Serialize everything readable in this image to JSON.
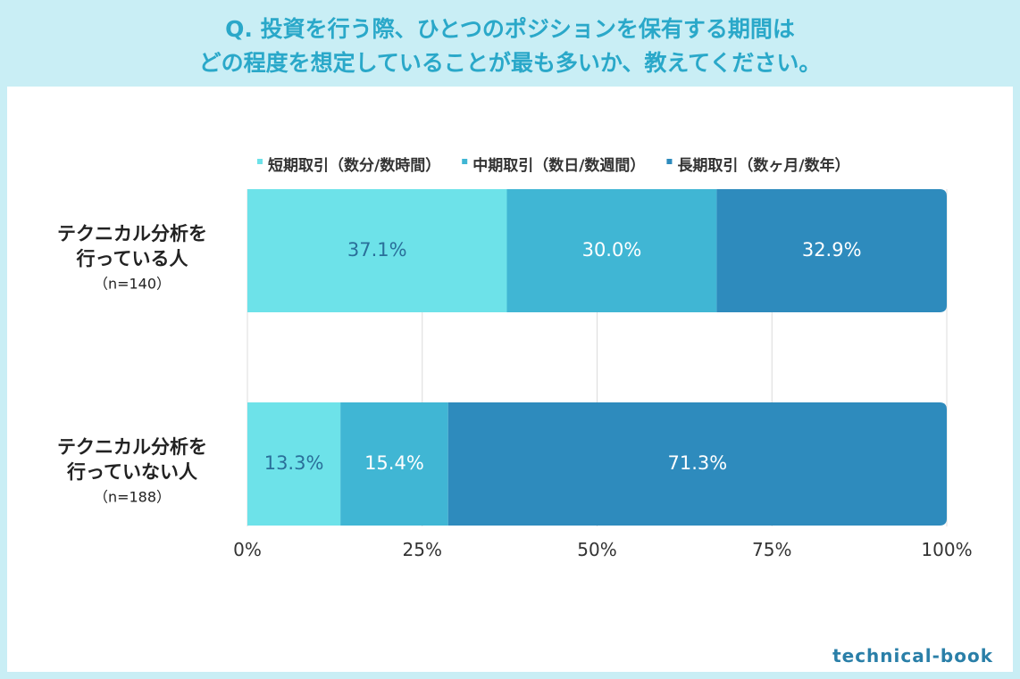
{
  "title": {
    "line1": "Q. 投資を行う際、ひとつのポジションを保有する期間は",
    "line2": "どの程度を想定していることが最も多いか、教えてください。"
  },
  "brand": "technical-book",
  "colors": {
    "short": "#6de2e9",
    "mid": "#40b6d4",
    "long": "#2e8bbd",
    "label_dark": "#2a6f9a",
    "label_light": "#ffffff",
    "title": "#2aa8c9"
  },
  "chart_data": {
    "type": "bar",
    "orientation": "horizontal",
    "stacked": true,
    "categories": [
      {
        "line1": "テクニカル分析を",
        "line2": "行っている人",
        "n": "（n=140）"
      },
      {
        "line1": "テクニカル分析を",
        "line2": "行っていない人",
        "n": "（n=188）"
      }
    ],
    "series": [
      {
        "name": "短期取引（数分/数時間）",
        "values": [
          37.1,
          13.3
        ],
        "labels": [
          "37.1%",
          "13.3%"
        ]
      },
      {
        "name": "中期取引（数日/数週間）",
        "values": [
          30.0,
          15.4
        ],
        "labels": [
          "30.0%",
          "15.4%"
        ]
      },
      {
        "name": "長期取引（数ヶ月/数年）",
        "values": [
          32.9,
          71.3
        ],
        "labels": [
          "32.9%",
          "71.3%"
        ]
      }
    ],
    "xlim": [
      0,
      100
    ],
    "xticks": [
      "0%",
      "25%",
      "50%",
      "75%",
      "100%"
    ],
    "grid": true,
    "legend": "top"
  }
}
